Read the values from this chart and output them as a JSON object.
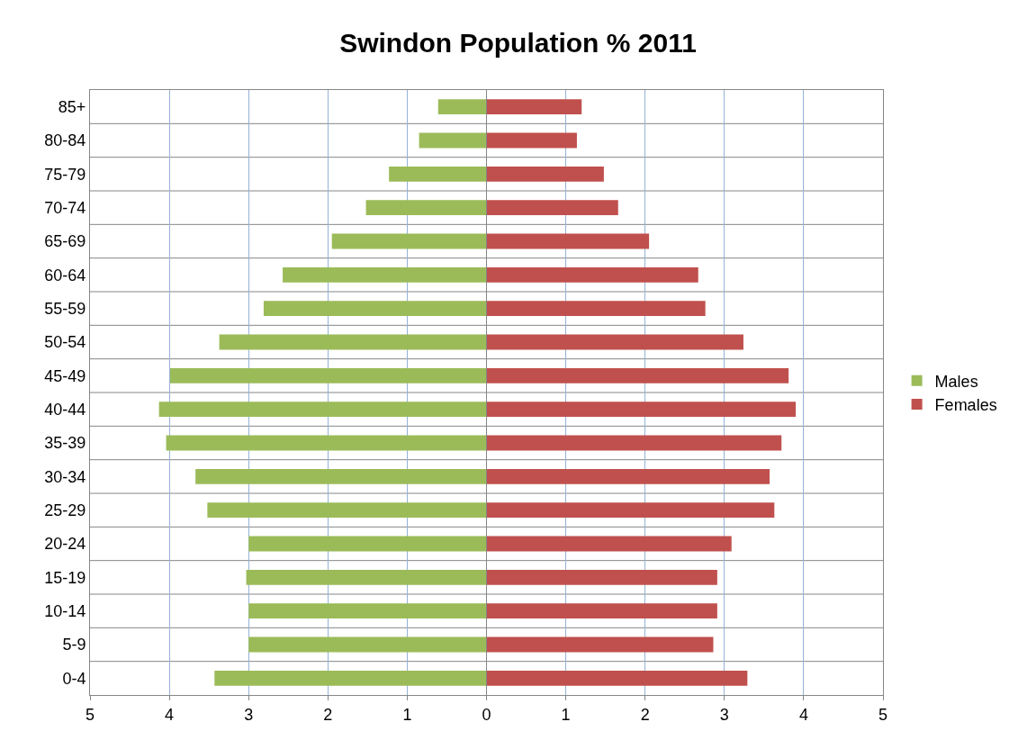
{
  "chart_data": {
    "type": "bar",
    "orientation": "horizontal",
    "title": "Swindon Population % 2011",
    "categories": [
      "85+",
      "80-84",
      "75-79",
      "70-74",
      "65-69",
      "60-64",
      "55-59",
      "50-54",
      "45-49",
      "40-44",
      "35-39",
      "30-34",
      "25-29",
      "20-24",
      "15-19",
      "10-14",
      "5-9",
      "0-4"
    ],
    "series": [
      {
        "name": "Males",
        "color": "#9bbb59",
        "values": [
          -0.61,
          -0.85,
          -1.23,
          -1.52,
          -1.95,
          -2.57,
          -2.81,
          -3.37,
          -3.99,
          -4.13,
          -4.04,
          -3.67,
          -3.52,
          -3.0,
          -3.03,
          -3.0,
          -3.0,
          -3.43
        ]
      },
      {
        "name": "Females",
        "color": "#c0504d",
        "values": [
          1.2,
          1.14,
          1.48,
          1.66,
          2.05,
          2.67,
          2.76,
          3.24,
          3.81,
          3.9,
          3.72,
          3.57,
          3.63,
          3.09,
          2.91,
          2.91,
          2.86,
          3.29
        ]
      }
    ],
    "xlim": [
      -5,
      5
    ],
    "xticks": [
      {
        "value": -5,
        "label": "5"
      },
      {
        "value": -4,
        "label": "4"
      },
      {
        "value": -3,
        "label": "3"
      },
      {
        "value": -2,
        "label": "2"
      },
      {
        "value": -1,
        "label": "1"
      },
      0,
      1,
      2,
      3,
      4,
      5
    ],
    "stacked": true,
    "grid": true,
    "legend": "right"
  }
}
